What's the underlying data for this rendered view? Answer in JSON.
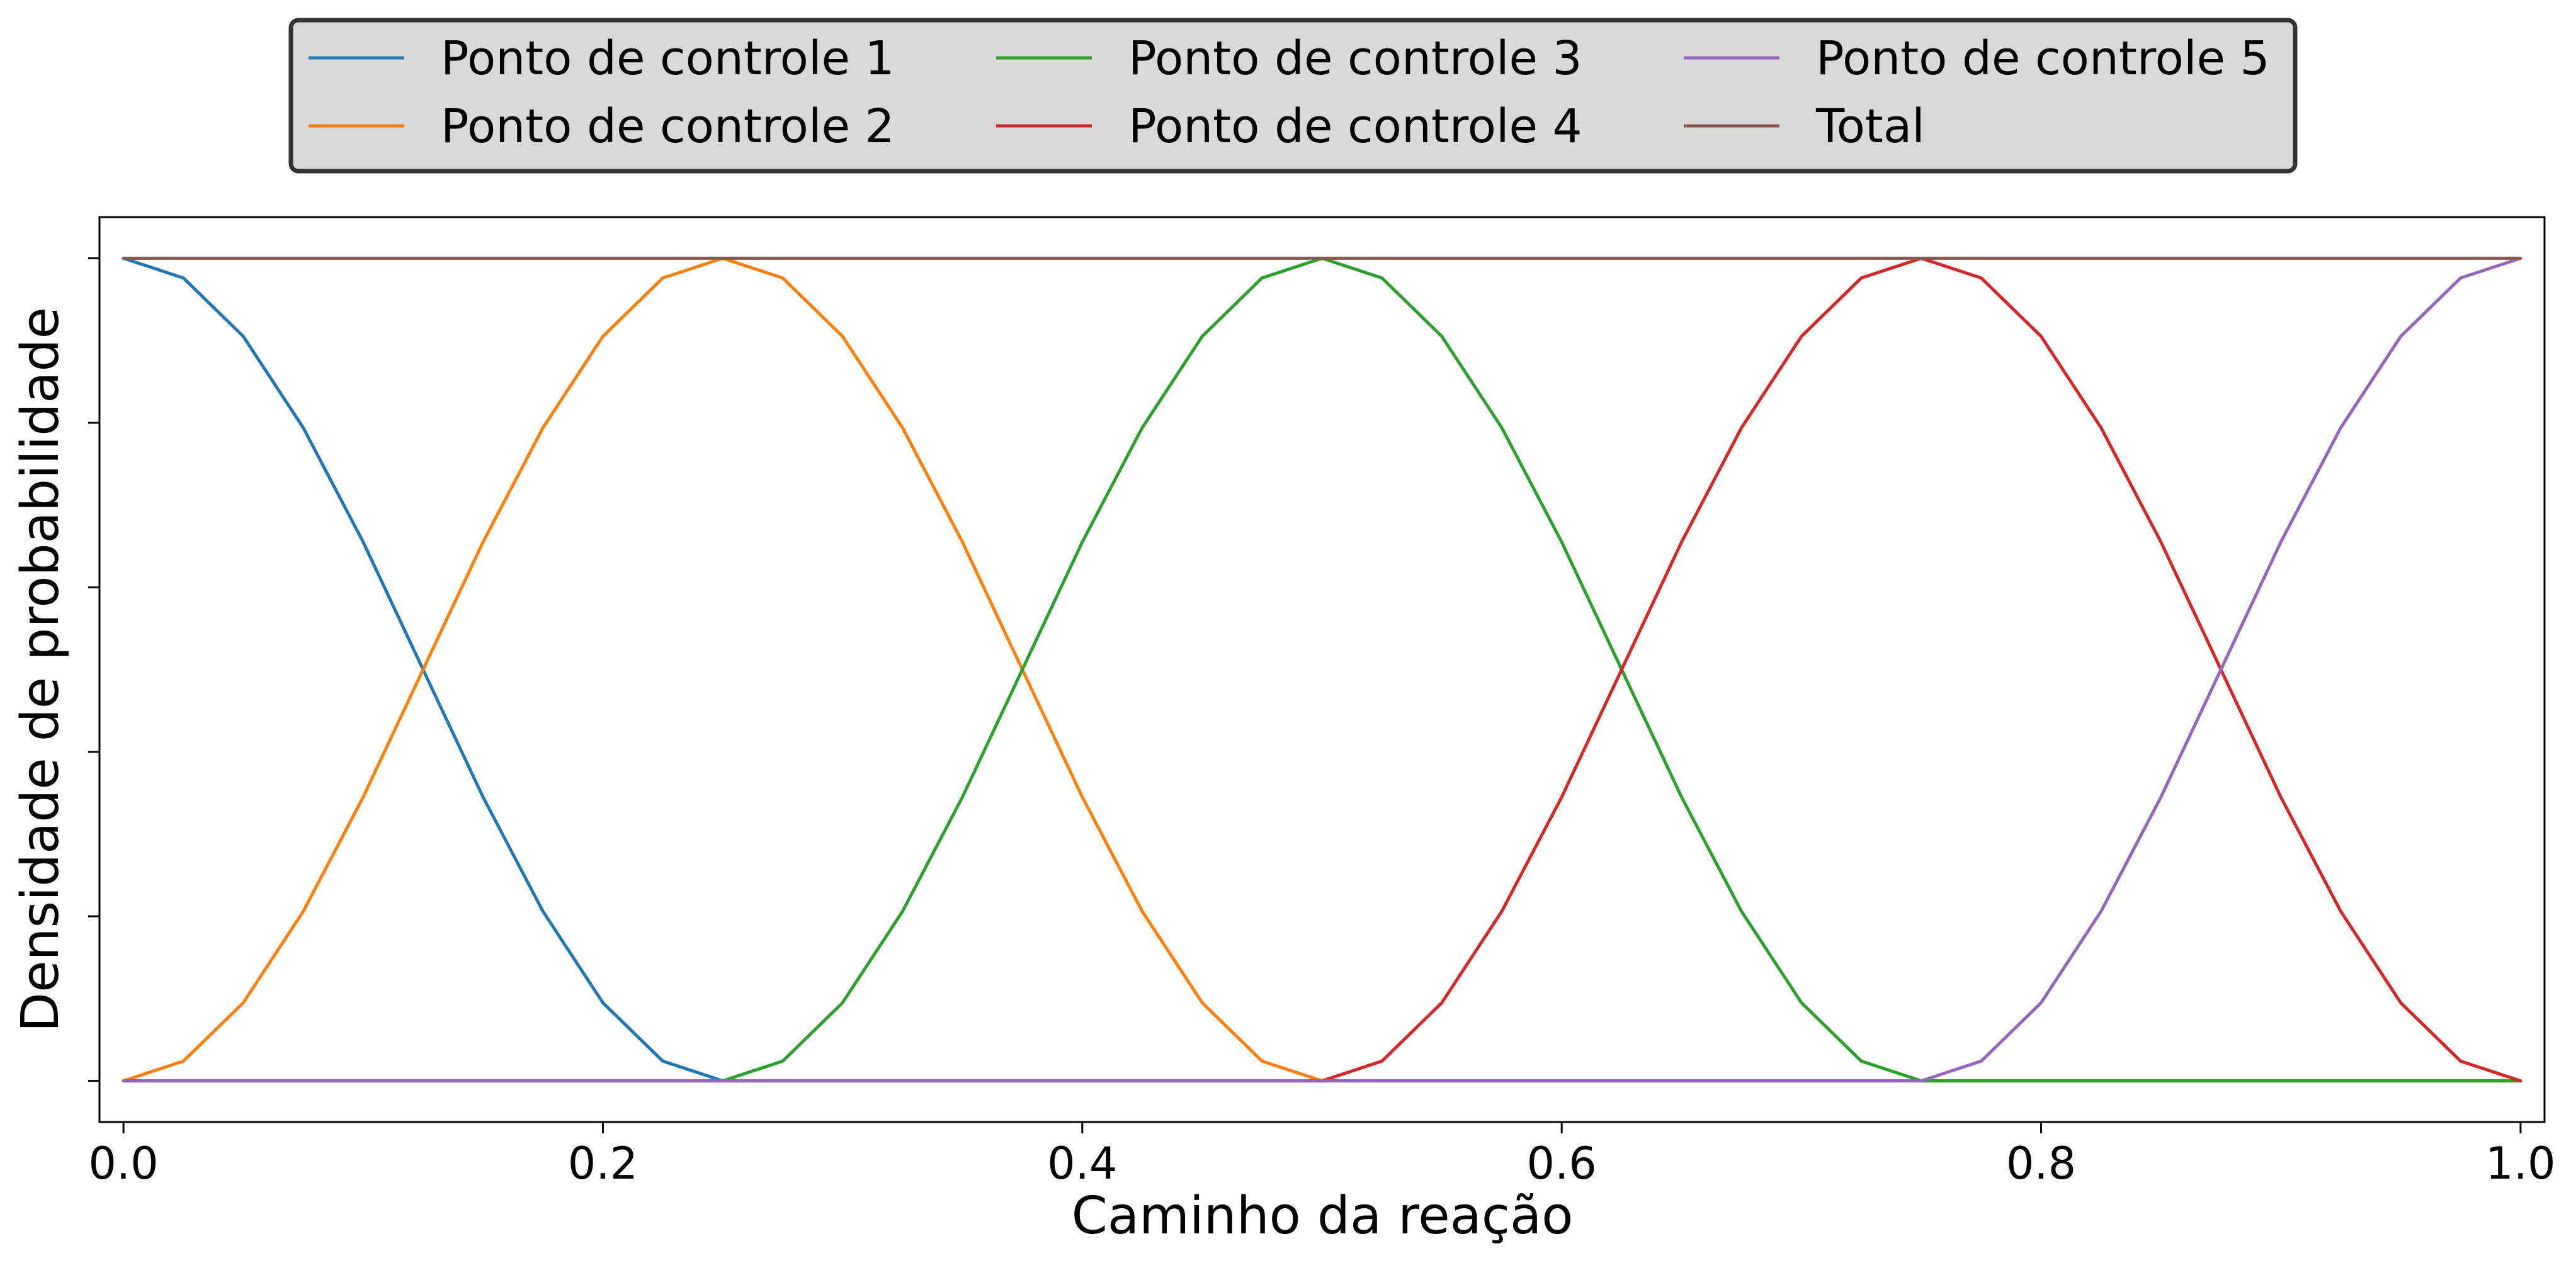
{
  "chart_data": {
    "type": "line",
    "title": "",
    "xlabel": "Caminho da reação",
    "ylabel": "Densidade de probabilidade",
    "xlim": [
      -0.01,
      1.01
    ],
    "ylim": [
      -0.05,
      1.05
    ],
    "x_ticks": [
      0.0,
      0.2,
      0.4,
      0.6,
      0.8,
      1.0
    ],
    "x_tick_labels": [
      "0.0",
      "0.2",
      "0.4",
      "0.6",
      "0.8",
      "1.0"
    ],
    "y_ticks": [
      0.0,
      0.2,
      0.4,
      0.6,
      0.8,
      1.0
    ],
    "y_tick_labels": [
      "",
      "",
      "",
      "",
      "",
      ""
    ],
    "grid": false,
    "legend_position": "top-center, outside plot",
    "legend_columns": 3,
    "series": [
      {
        "name": "Ponto de controle 1",
        "color": "#1f77b4",
        "x": [
          0,
          0.025,
          0.05,
          0.075,
          0.1,
          0.125,
          0.15,
          0.175,
          0.2,
          0.225,
          0.25,
          0.3,
          0.4,
          0.5,
          0.6,
          0.7,
          0.8,
          0.9,
          1.0
        ],
        "y": [
          1,
          0.976,
          0.905,
          0.794,
          0.655,
          0.5,
          0.345,
          0.206,
          0.095,
          0.024,
          0,
          0,
          0,
          0,
          0,
          0,
          0,
          0,
          0
        ]
      },
      {
        "name": "Ponto de controle 2",
        "color": "#ff7f0e",
        "x": [
          0,
          0.025,
          0.05,
          0.075,
          0.1,
          0.125,
          0.15,
          0.175,
          0.2,
          0.225,
          0.25,
          0.275,
          0.3,
          0.325,
          0.35,
          0.375,
          0.4,
          0.425,
          0.45,
          0.475,
          0.5,
          0.6,
          0.7,
          0.8,
          0.9,
          1.0
        ],
        "y": [
          0,
          0.024,
          0.095,
          0.206,
          0.345,
          0.5,
          0.655,
          0.794,
          0.905,
          0.976,
          1,
          0.976,
          0.905,
          0.794,
          0.655,
          0.5,
          0.345,
          0.206,
          0.095,
          0.024,
          0,
          0,
          0,
          0,
          0,
          0
        ]
      },
      {
        "name": "Ponto de controle 3",
        "color": "#2ca02c",
        "x": [
          0,
          0.1,
          0.2,
          0.25,
          0.275,
          0.3,
          0.325,
          0.35,
          0.375,
          0.4,
          0.425,
          0.45,
          0.475,
          0.5,
          0.525,
          0.55,
          0.575,
          0.6,
          0.625,
          0.65,
          0.675,
          0.7,
          0.725,
          0.75,
          0.8,
          0.9,
          1.0
        ],
        "y": [
          0,
          0,
          0,
          0,
          0.024,
          0.095,
          0.206,
          0.345,
          0.5,
          0.655,
          0.794,
          0.905,
          0.976,
          1,
          0.976,
          0.905,
          0.794,
          0.655,
          0.5,
          0.345,
          0.206,
          0.095,
          0.024,
          0,
          0,
          0,
          0
        ]
      },
      {
        "name": "Ponto de controle 4",
        "color": "#d62728",
        "x": [
          0,
          0.1,
          0.2,
          0.3,
          0.4,
          0.5,
          0.525,
          0.55,
          0.575,
          0.6,
          0.625,
          0.65,
          0.675,
          0.7,
          0.725,
          0.75,
          0.775,
          0.8,
          0.825,
          0.85,
          0.875,
          0.9,
          0.925,
          0.95,
          0.975,
          1.0
        ],
        "y": [
          0,
          0,
          0,
          0,
          0,
          0,
          0.024,
          0.095,
          0.206,
          0.345,
          0.5,
          0.655,
          0.794,
          0.905,
          0.976,
          1,
          0.976,
          0.905,
          0.794,
          0.655,
          0.5,
          0.345,
          0.206,
          0.095,
          0.024,
          0
        ]
      },
      {
        "name": "Ponto de controle 5",
        "color": "#9467bd",
        "x": [
          0,
          0.1,
          0.2,
          0.3,
          0.4,
          0.5,
          0.6,
          0.7,
          0.75,
          0.775,
          0.8,
          0.825,
          0.85,
          0.875,
          0.9,
          0.925,
          0.95,
          0.975,
          1.0
        ],
        "y": [
          0,
          0,
          0,
          0,
          0,
          0,
          0,
          0,
          0,
          0.024,
          0.095,
          0.206,
          0.345,
          0.5,
          0.655,
          0.794,
          0.905,
          0.976,
          1
        ]
      },
      {
        "name": "Total",
        "color": "#8c564b",
        "x": [
          0,
          1.0
        ],
        "y": [
          1,
          1
        ]
      }
    ]
  }
}
